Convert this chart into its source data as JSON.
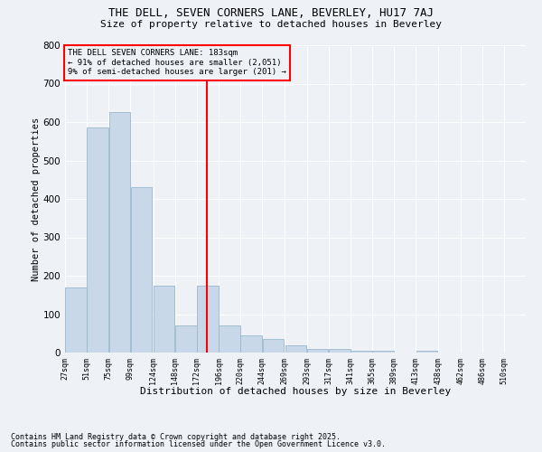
{
  "title1": "THE DELL, SEVEN CORNERS LANE, BEVERLEY, HU17 7AJ",
  "title2": "Size of property relative to detached houses in Beverley",
  "xlabel": "Distribution of detached houses by size in Beverley",
  "ylabel": "Number of detached properties",
  "footnote1": "Contains HM Land Registry data © Crown copyright and database right 2025.",
  "footnote2": "Contains public sector information licensed under the Open Government Licence v3.0.",
  "annotation_line1": "THE DELL SEVEN CORNERS LANE: 183sqm",
  "annotation_line2": "← 91% of detached houses are smaller (2,051)",
  "annotation_line3": "9% of semi-detached houses are larger (201) →",
  "bin_starts": [
    27,
    51,
    75,
    99,
    124,
    148,
    172,
    196,
    220,
    244,
    269,
    293,
    317,
    341,
    365,
    389,
    413,
    438,
    462,
    486
  ],
  "bin_labels": [
    "27sqm",
    "51sqm",
    "75sqm",
    "99sqm",
    "124sqm",
    "148sqm",
    "172sqm",
    "196sqm",
    "220sqm",
    "244sqm",
    "269sqm",
    "293sqm",
    "317sqm",
    "341sqm",
    "365sqm",
    "389sqm",
    "413sqm",
    "438sqm",
    "462sqm",
    "486sqm",
    "510sqm"
  ],
  "bar_heights": [
    170,
    585,
    625,
    430,
    175,
    70,
    175,
    70,
    45,
    35,
    20,
    10,
    10,
    5,
    5,
    0,
    5,
    0,
    0,
    0
  ],
  "bar_color": "#c8d8e8",
  "bar_edge_color": "#9ab8cc",
  "vline_color": "red",
  "vline_x": 183,
  "annotation_box_color": "red",
  "background_color": "#eef2f7",
  "grid_color": "#ffffff",
  "ylim": [
    0,
    800
  ],
  "yticks": [
    0,
    100,
    200,
    300,
    400,
    500,
    600,
    700,
    800
  ],
  "bin_width": 24
}
